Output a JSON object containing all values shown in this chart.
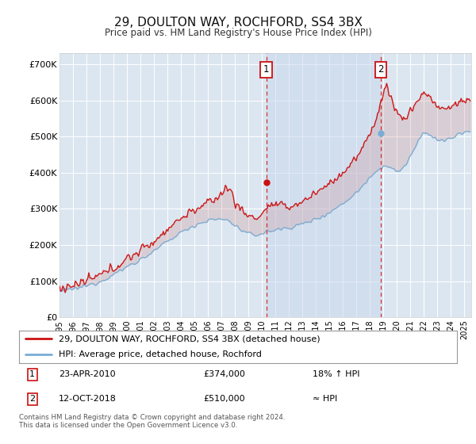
{
  "title": "29, DOULTON WAY, ROCHFORD, SS4 3BX",
  "subtitle": "Price paid vs. HM Land Registry's House Price Index (HPI)",
  "ylabel_ticks": [
    "£0",
    "£100K",
    "£200K",
    "£300K",
    "£400K",
    "£500K",
    "£600K",
    "£700K"
  ],
  "ytick_values": [
    0,
    100000,
    200000,
    300000,
    400000,
    500000,
    600000,
    700000
  ],
  "ylim": [
    0,
    730000
  ],
  "xlim_start": 1995.0,
  "xlim_end": 2025.5,
  "background_color": "#ffffff",
  "plot_bg_color": "#dce6f0",
  "grid_color": "#ffffff",
  "hpi_color": "#7aadd4",
  "price_color": "#cc1111",
  "shade_color": "#c8d8ee",
  "sale1_x": 2010.31,
  "sale1_y": 374000,
  "sale2_x": 2018.79,
  "sale2_y": 510000,
  "legend_line1": "29, DOULTON WAY, ROCHFORD, SS4 3BX (detached house)",
  "legend_line2": "HPI: Average price, detached house, Rochford",
  "annot1_date": "23-APR-2010",
  "annot1_price": "£374,000",
  "annot1_hpi": "18% ↑ HPI",
  "annot2_date": "12-OCT-2018",
  "annot2_price": "£510,000",
  "annot2_hpi": "≈ HPI",
  "footer": "Contains HM Land Registry data © Crown copyright and database right 2024.\nThis data is licensed under the Open Government Licence v3.0.",
  "xtick_years": [
    1995,
    1996,
    1997,
    1998,
    1999,
    2000,
    2001,
    2002,
    2003,
    2004,
    2005,
    2006,
    2007,
    2008,
    2009,
    2010,
    2011,
    2012,
    2013,
    2014,
    2015,
    2016,
    2017,
    2018,
    2019,
    2020,
    2021,
    2022,
    2023,
    2024,
    2025
  ]
}
